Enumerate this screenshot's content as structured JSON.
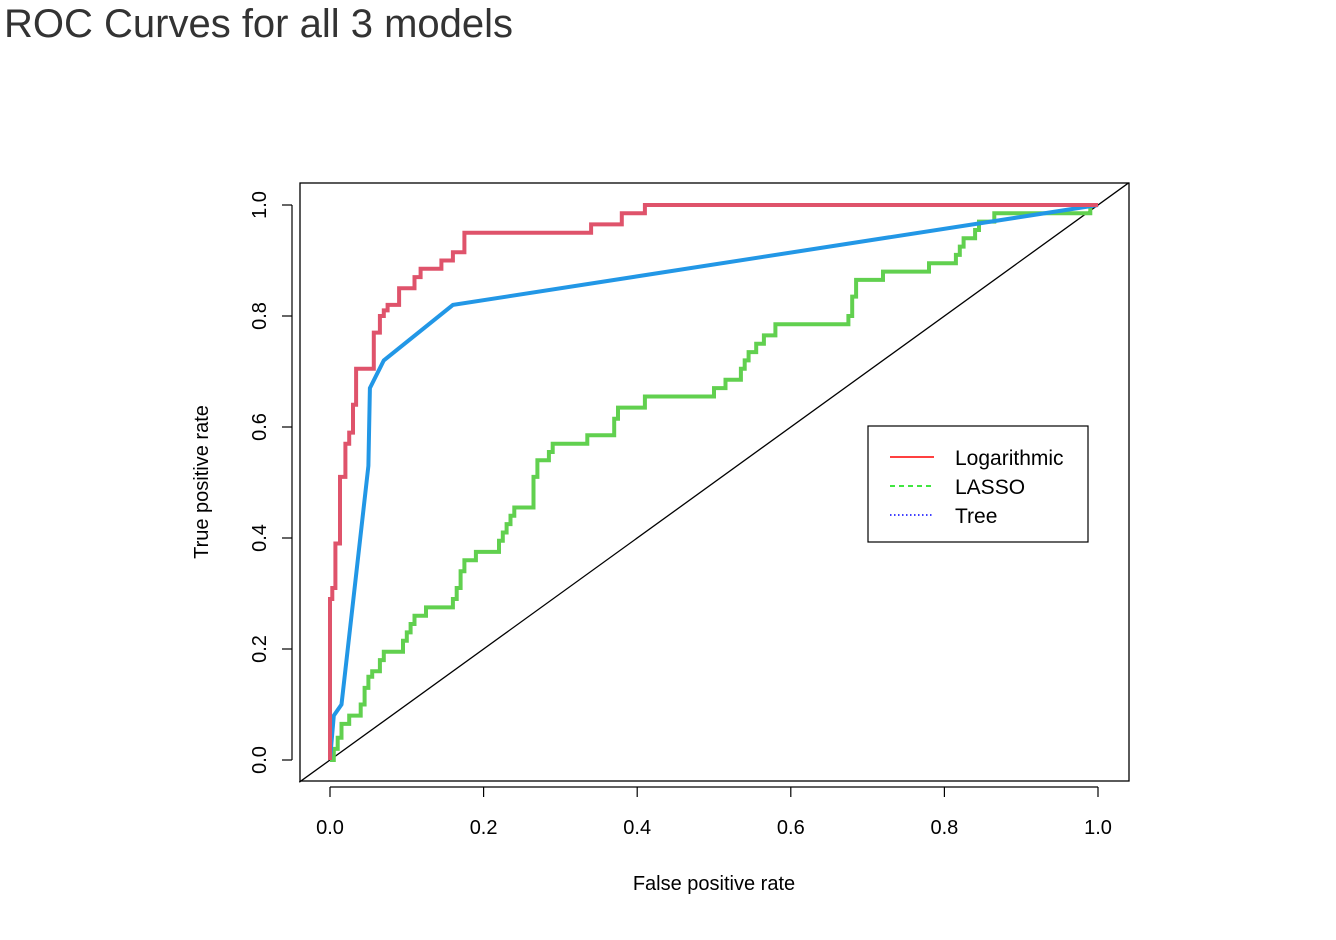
{
  "page": {
    "title": "ROC Curves for all 3 models"
  },
  "chart_data": {
    "type": "line",
    "xlabel": "False positive rate",
    "ylabel": "True positive rate",
    "xlim": [
      0,
      1
    ],
    "ylim": [
      0,
      1
    ],
    "xticks": [
      "0.0",
      "0.2",
      "0.4",
      "0.6",
      "0.8",
      "1.0"
    ],
    "yticks": [
      "0.0",
      "0.2",
      "0.4",
      "0.6",
      "0.8",
      "1.0"
    ],
    "grid": false,
    "legend_position": "right",
    "reference_line": {
      "from": [
        0,
        0
      ],
      "to": [
        1,
        1
      ],
      "color": "#000000"
    },
    "series": [
      {
        "name": "Logarithmic",
        "color": "#df536b",
        "legend_color": "#ff0000",
        "legend_dash": "solid",
        "points": [
          [
            0.0,
            0.0
          ],
          [
            0.0,
            0.29
          ],
          [
            0.003,
            0.29
          ],
          [
            0.003,
            0.31
          ],
          [
            0.007,
            0.31
          ],
          [
            0.007,
            0.39
          ],
          [
            0.013,
            0.39
          ],
          [
            0.013,
            0.51
          ],
          [
            0.02,
            0.51
          ],
          [
            0.02,
            0.57
          ],
          [
            0.025,
            0.57
          ],
          [
            0.025,
            0.59
          ],
          [
            0.03,
            0.59
          ],
          [
            0.03,
            0.64
          ],
          [
            0.034,
            0.64
          ],
          [
            0.034,
            0.705
          ],
          [
            0.057,
            0.705
          ],
          [
            0.057,
            0.77
          ],
          [
            0.065,
            0.77
          ],
          [
            0.065,
            0.8
          ],
          [
            0.07,
            0.8
          ],
          [
            0.07,
            0.81
          ],
          [
            0.075,
            0.81
          ],
          [
            0.075,
            0.82
          ],
          [
            0.09,
            0.82
          ],
          [
            0.09,
            0.85
          ],
          [
            0.11,
            0.85
          ],
          [
            0.11,
            0.87
          ],
          [
            0.118,
            0.87
          ],
          [
            0.118,
            0.885
          ],
          [
            0.145,
            0.885
          ],
          [
            0.145,
            0.9
          ],
          [
            0.16,
            0.9
          ],
          [
            0.16,
            0.915
          ],
          [
            0.175,
            0.915
          ],
          [
            0.175,
            0.95
          ],
          [
            0.34,
            0.95
          ],
          [
            0.34,
            0.965
          ],
          [
            0.38,
            0.965
          ],
          [
            0.38,
            0.985
          ],
          [
            0.41,
            0.985
          ],
          [
            0.41,
            1.0
          ],
          [
            1.0,
            1.0
          ]
        ]
      },
      {
        "name": "LASSO",
        "color": "#61d04f",
        "legend_color": "#00dd00",
        "legend_dash": "dashed",
        "points": [
          [
            0.0,
            0.0
          ],
          [
            0.005,
            0.0
          ],
          [
            0.005,
            0.02
          ],
          [
            0.01,
            0.02
          ],
          [
            0.01,
            0.04
          ],
          [
            0.015,
            0.04
          ],
          [
            0.015,
            0.065
          ],
          [
            0.025,
            0.065
          ],
          [
            0.025,
            0.08
          ],
          [
            0.04,
            0.08
          ],
          [
            0.04,
            0.1
          ],
          [
            0.045,
            0.1
          ],
          [
            0.045,
            0.13
          ],
          [
            0.05,
            0.13
          ],
          [
            0.05,
            0.15
          ],
          [
            0.055,
            0.15
          ],
          [
            0.055,
            0.16
          ],
          [
            0.065,
            0.16
          ],
          [
            0.065,
            0.18
          ],
          [
            0.07,
            0.18
          ],
          [
            0.07,
            0.195
          ],
          [
            0.095,
            0.195
          ],
          [
            0.095,
            0.215
          ],
          [
            0.1,
            0.215
          ],
          [
            0.1,
            0.23
          ],
          [
            0.105,
            0.23
          ],
          [
            0.105,
            0.245
          ],
          [
            0.11,
            0.245
          ],
          [
            0.11,
            0.26
          ],
          [
            0.125,
            0.26
          ],
          [
            0.125,
            0.275
          ],
          [
            0.16,
            0.275
          ],
          [
            0.16,
            0.29
          ],
          [
            0.165,
            0.29
          ],
          [
            0.165,
            0.31
          ],
          [
            0.17,
            0.31
          ],
          [
            0.17,
            0.34
          ],
          [
            0.175,
            0.34
          ],
          [
            0.175,
            0.36
          ],
          [
            0.19,
            0.36
          ],
          [
            0.19,
            0.375
          ],
          [
            0.22,
            0.375
          ],
          [
            0.22,
            0.395
          ],
          [
            0.225,
            0.395
          ],
          [
            0.225,
            0.41
          ],
          [
            0.23,
            0.41
          ],
          [
            0.23,
            0.425
          ],
          [
            0.235,
            0.425
          ],
          [
            0.235,
            0.44
          ],
          [
            0.24,
            0.44
          ],
          [
            0.24,
            0.455
          ],
          [
            0.265,
            0.455
          ],
          [
            0.265,
            0.51
          ],
          [
            0.27,
            0.51
          ],
          [
            0.27,
            0.54
          ],
          [
            0.285,
            0.54
          ],
          [
            0.285,
            0.555
          ],
          [
            0.29,
            0.555
          ],
          [
            0.29,
            0.57
          ],
          [
            0.335,
            0.57
          ],
          [
            0.335,
            0.585
          ],
          [
            0.37,
            0.585
          ],
          [
            0.37,
            0.615
          ],
          [
            0.375,
            0.615
          ],
          [
            0.375,
            0.635
          ],
          [
            0.41,
            0.635
          ],
          [
            0.41,
            0.655
          ],
          [
            0.5,
            0.655
          ],
          [
            0.5,
            0.67
          ],
          [
            0.515,
            0.67
          ],
          [
            0.515,
            0.685
          ],
          [
            0.535,
            0.685
          ],
          [
            0.535,
            0.705
          ],
          [
            0.54,
            0.705
          ],
          [
            0.54,
            0.72
          ],
          [
            0.545,
            0.72
          ],
          [
            0.545,
            0.735
          ],
          [
            0.555,
            0.735
          ],
          [
            0.555,
            0.75
          ],
          [
            0.565,
            0.75
          ],
          [
            0.565,
            0.765
          ],
          [
            0.58,
            0.765
          ],
          [
            0.58,
            0.785
          ],
          [
            0.675,
            0.785
          ],
          [
            0.675,
            0.8
          ],
          [
            0.68,
            0.8
          ],
          [
            0.68,
            0.835
          ],
          [
            0.685,
            0.835
          ],
          [
            0.685,
            0.865
          ],
          [
            0.72,
            0.865
          ],
          [
            0.72,
            0.88
          ],
          [
            0.78,
            0.88
          ],
          [
            0.78,
            0.895
          ],
          [
            0.815,
            0.895
          ],
          [
            0.815,
            0.91
          ],
          [
            0.82,
            0.91
          ],
          [
            0.82,
            0.925
          ],
          [
            0.825,
            0.925
          ],
          [
            0.825,
            0.94
          ],
          [
            0.84,
            0.94
          ],
          [
            0.84,
            0.955
          ],
          [
            0.845,
            0.955
          ],
          [
            0.845,
            0.97
          ],
          [
            0.865,
            0.97
          ],
          [
            0.865,
            0.985
          ],
          [
            0.99,
            0.985
          ],
          [
            0.99,
            1.0
          ],
          [
            1.0,
            1.0
          ]
        ]
      },
      {
        "name": "Tree",
        "color": "#2297e6",
        "legend_color": "#0000ff",
        "legend_dash": "dotted",
        "points": [
          [
            0.0,
            0.0
          ],
          [
            0.005,
            0.08
          ],
          [
            0.015,
            0.1
          ],
          [
            0.05,
            0.53
          ],
          [
            0.052,
            0.67
          ],
          [
            0.07,
            0.72
          ],
          [
            0.16,
            0.82
          ],
          [
            1.0,
            1.0
          ]
        ]
      }
    ]
  }
}
